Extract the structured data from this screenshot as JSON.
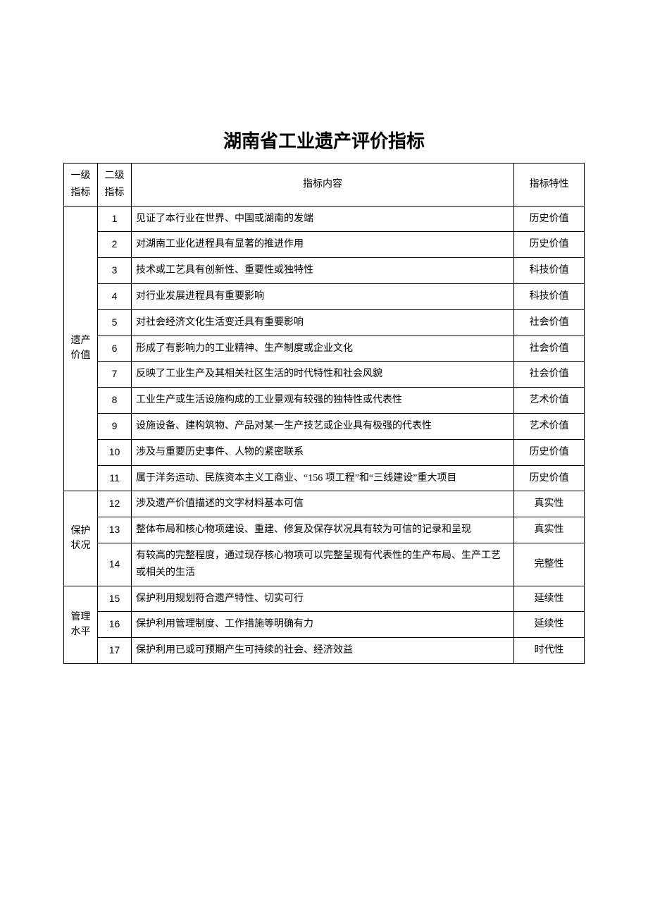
{
  "title": "湖南省工业遗产评价指标",
  "headers": {
    "level1": "一级指标",
    "level2": "二级指标",
    "content": "指标内容",
    "attr": "指标特性"
  },
  "groups": [
    {
      "label": "遗产价值",
      "rows": [
        {
          "num": "1",
          "content": "见证了本行业在世界、中国或湖南的发端",
          "attr": "历史价值"
        },
        {
          "num": "2",
          "content": "对湖南工业化进程具有显著的推进作用",
          "attr": "历史价值"
        },
        {
          "num": "3",
          "content": "技术或工艺具有创新性、重要性或独特性",
          "attr": "科技价值"
        },
        {
          "num": "4",
          "content": "对行业发展进程具有重要影响",
          "attr": "科技价值"
        },
        {
          "num": "5",
          "content": "对社会经济文化生活变迁具有重要影响",
          "attr": "社会价值"
        },
        {
          "num": "6",
          "content": "形成了有影响力的工业精神、生产制度或企业文化",
          "attr": "社会价值"
        },
        {
          "num": "7",
          "content": "反映了工业生产及其相关社区生活的时代特性和社会风貌",
          "attr": "社会价值"
        },
        {
          "num": "8",
          "content": "工业生产或生活设施构成的工业景观有较强的独特性或代表性",
          "attr": "艺术价值"
        },
        {
          "num": "9",
          "content": "设施设备、建构筑物、产品对某一生产技艺或企业具有极强的代表性",
          "attr": "艺术价值"
        },
        {
          "num": "10",
          "content": "涉及与重要历史事件、人物的紧密联系",
          "attr": "历史价值"
        },
        {
          "num": "11",
          "content": "属于洋务运动、民族资本主义工商业、“156 项工程”和“三线建设”重大项目",
          "attr": "历史价值"
        }
      ]
    },
    {
      "label": "保护状况",
      "rows": [
        {
          "num": "12",
          "content": "涉及遗产价值描述的文字材料基本可信",
          "attr": "真实性"
        },
        {
          "num": "13",
          "content": "整体布局和核心物项建设、重建、修复及保存状况具有较为可信的记录和呈现",
          "attr": "真实性"
        },
        {
          "num": "14",
          "content": "有较高的完整程度，通过现存核心物项可以完整呈现有代表性的生产布局、生产工艺或相关的生活",
          "attr": "完整性"
        }
      ]
    },
    {
      "label": "管理水平",
      "rows": [
        {
          "num": "15",
          "content": "保护利用规划符合遗产特性、切实可行",
          "attr": "延续性"
        },
        {
          "num": "16",
          "content": "保护利用管理制度、工作措施等明确有力",
          "attr": "延续性"
        },
        {
          "num": "17",
          "content": "保护利用已或可预期产生可持续的社会、经济效益",
          "attr": "时代性"
        }
      ]
    }
  ]
}
